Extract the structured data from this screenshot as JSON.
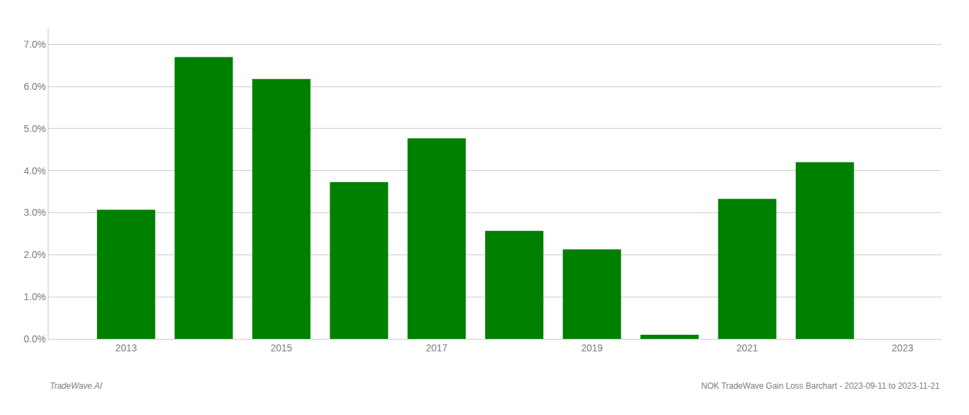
{
  "chart_data": {
    "type": "bar",
    "x": [
      2013,
      2014,
      2015,
      2016,
      2017,
      2018,
      2019,
      2020,
      2021,
      2022
    ],
    "values": [
      0.0307,
      0.067,
      0.0618,
      0.0373,
      0.0477,
      0.0257,
      0.0213,
      0.001,
      0.0333,
      0.042
    ],
    "color": "#008000",
    "xlim": [
      2012.0,
      2023.5
    ],
    "xticks": [
      2013,
      2015,
      2017,
      2019,
      2021,
      2023
    ],
    "ylim": [
      0.0,
      0.074
    ],
    "yticks": [
      {
        "value": 0.0,
        "label": "0.0%"
      },
      {
        "value": 0.01,
        "label": "1.0%"
      },
      {
        "value": 0.02,
        "label": "2.0%"
      },
      {
        "value": 0.03,
        "label": "3.0%"
      },
      {
        "value": 0.04,
        "label": "4.0%"
      },
      {
        "value": 0.05,
        "label": "5.0%"
      },
      {
        "value": 0.06,
        "label": "6.0%"
      },
      {
        "value": 0.07,
        "label": "7.0%"
      }
    ],
    "grid": true,
    "annotations": [
      "TradeWave.AI",
      "NOK TradeWave Gain Loss Barchart - 2023-09-11 to 2023-11-21"
    ]
  }
}
